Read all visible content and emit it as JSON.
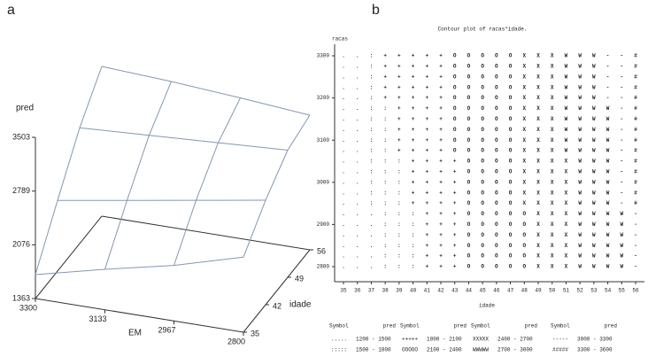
{
  "chart_data": [
    {
      "type": "surface",
      "panel_label": "a",
      "z_label": "pred",
      "x_label": "EM",
      "y_label": "idade",
      "x": [
        3300,
        3133,
        2967,
        2800
      ],
      "y": [
        35,
        42,
        49,
        56
      ],
      "z": [
        [
          1680,
          2300,
          2900,
          3350
        ],
        [
          1900,
          2450,
          2950,
          3300
        ],
        [
          2100,
          2600,
          3000,
          3230
        ],
        [
          2360,
          2750,
          3050,
          3150
        ]
      ],
      "xlim": [
        3300,
        2800
      ],
      "xticks": [
        3300,
        3133,
        2967,
        2800
      ],
      "ylim": [
        35,
        56
      ],
      "yticks": [
        35,
        42,
        49,
        56
      ],
      "zlim": [
        1363,
        3503
      ],
      "zticks": [
        1363,
        2076,
        2789,
        3503
      ],
      "color": "#8497b0"
    },
    {
      "type": "contour_text",
      "panel_label": "b",
      "title": "Contour plot of racas*idade.",
      "y_label": "racas",
      "x_label": "idade",
      "xlim": [
        35,
        56
      ],
      "xticks": [
        35,
        36,
        37,
        38,
        39,
        40,
        41,
        42,
        43,
        44,
        45,
        46,
        47,
        48,
        49,
        50,
        51,
        52,
        53,
        54,
        55,
        56
      ],
      "ylim": [
        2800,
        3300
      ],
      "yticks": [
        2800,
        2900,
        3000,
        3100,
        3200,
        3300
      ],
      "rows": [
        "..:+++++OOOOOXXXWWW--#",
        "..:+++++OOOOOXXXWWW--#",
        "..:+++++OOOOOXXXWWW--#",
        "..:+++++OOOOOXXXWWW--#",
        "..:+++++OOOOOXXXWWW--#",
        "..::++++OOOOOXXXWWWW-#",
        "..::++++OOOOOXXXWWWW-#",
        "..::++++OOOOOXXXWWWW-#",
        "..::++++OOOOOXXXWWWW-#",
        "..::++++OOOOOXXXWWWW-#",
        "..:::++++OOOOXXXXWWW-#",
        "..:::++++OOOOXXXXWWW-#",
        "..:::++++OOOOXXXXWWW-#",
        "..:::++++OOOOXXXXWWW-#",
        "..:::++++OOOOXXXXWWW-#",
        "...:::+++OOOOOXXXWWWW-",
        "...:::+++OOOOOXXXWWWW-",
        "...:::+++OOOOOXXXWWWW-",
        "...:::+++OOOOOXXXWWWW-",
        "...:::+++OOOOOXXXWWWW-",
        "...:::+++OOOOOXXXWWWW-"
      ],
      "legend": {
        "headers": [
          "Symbol",
          "pred"
        ],
        "entries": [
          [
            {
              "symbol": ".....",
              "range": "1200 - 1500"
            },
            {
              "symbol": ":::::",
              "range": "1500 - 1800"
            }
          ],
          [
            {
              "symbol": "+++++",
              "range": "1800 - 2100"
            },
            {
              "symbol": "OOOOO",
              "range": "2100 - 2400"
            }
          ],
          [
            {
              "symbol": "XXXXX",
              "range": "2400 - 2700"
            },
            {
              "symbol": "WWWWW",
              "range": "2700 - 3000"
            }
          ],
          [
            {
              "symbol": "-----",
              "range": "3000 - 3300"
            },
            {
              "symbol": "#####",
              "range": "3300 - 3600"
            }
          ]
        ]
      }
    }
  ]
}
